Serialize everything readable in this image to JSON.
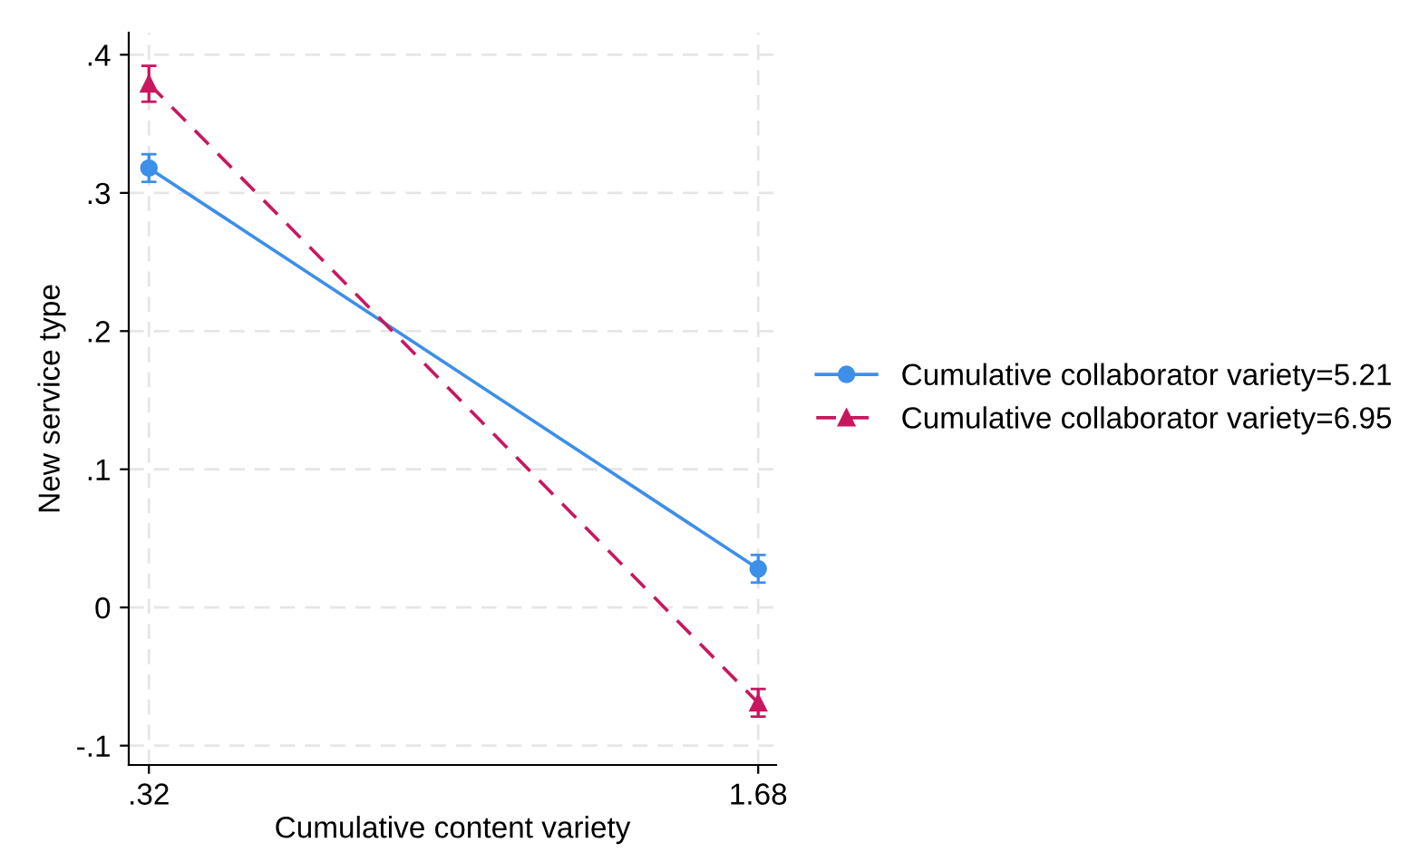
{
  "chart_data": {
    "type": "line",
    "xlabel": "Cumulative content variety",
    "ylabel": "New service type",
    "x": [
      0.32,
      1.68
    ],
    "series": [
      {
        "name": "Cumulative collaborator variety=5.21",
        "color": "#3d8fe8",
        "values": [
          0.318,
          0.028
        ],
        "errors": [
          0.01,
          0.01
        ],
        "marker": "circle",
        "line_style": "solid"
      },
      {
        "name": "Cumulative collaborator variety=6.95",
        "color": "#c9175f",
        "values": [
          0.379,
          -0.069
        ],
        "errors": [
          0.013,
          0.01
        ],
        "marker": "triangle",
        "line_style": "dashed"
      }
    ],
    "xlim": [
      0.275,
      1.72
    ],
    "xticks": [
      {
        "value": 0.32,
        "label": ".32"
      },
      {
        "value": 1.68,
        "label": "1.68"
      }
    ],
    "ylim": [
      -0.114,
      0.416
    ],
    "yticks": [
      {
        "value": -0.1,
        "label": "-.1"
      },
      0,
      {
        "value": 0.1,
        "label": ".1"
      },
      {
        "value": 0.2,
        "label": ".2"
      },
      {
        "value": 0.3,
        "label": ".3"
      },
      {
        "value": 0.4,
        "label": ".4"
      }
    ],
    "grid": true,
    "legend": "right"
  }
}
